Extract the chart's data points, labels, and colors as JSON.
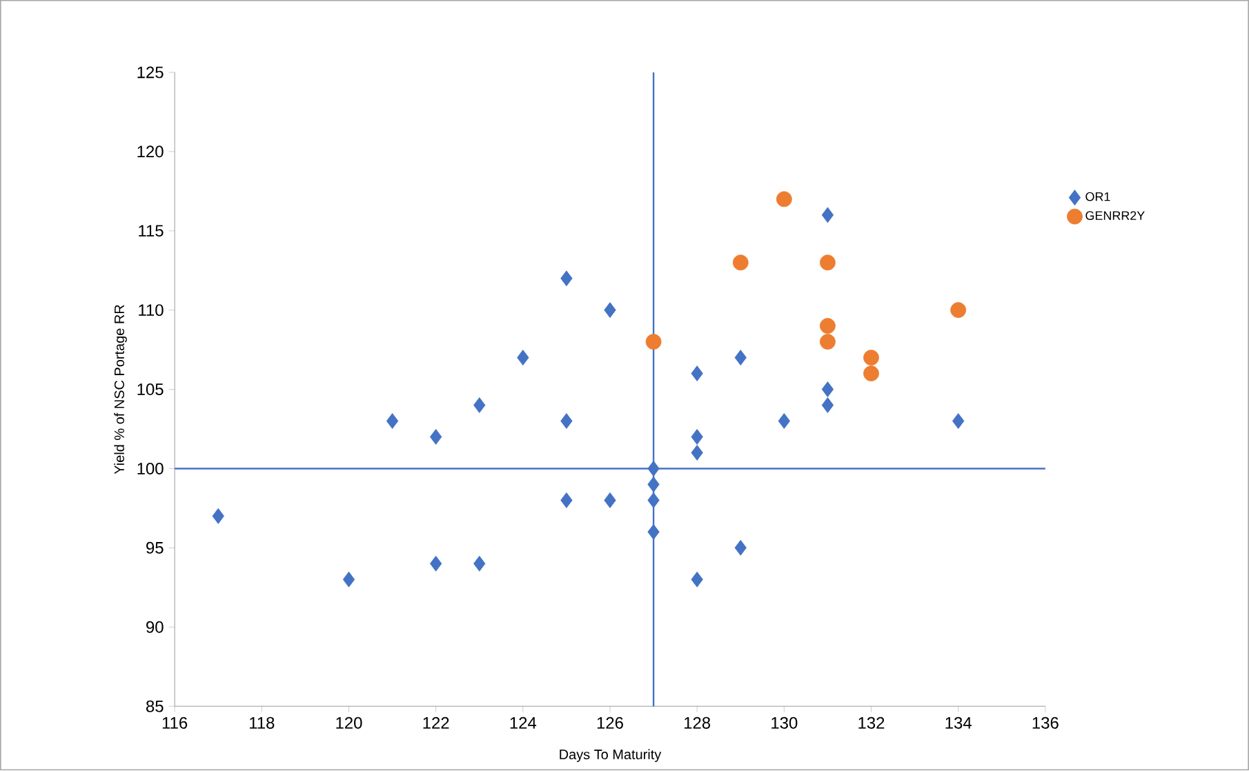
{
  "chart_data": {
    "type": "scatter",
    "xlabel": "Days To Maturity",
    "ylabel": "Yield % of NSC Portage RR",
    "xlim": [
      116,
      136
    ],
    "xticks": [
      116,
      118,
      120,
      122,
      124,
      126,
      128,
      130,
      132,
      134,
      136
    ],
    "ylim": [
      85,
      125
    ],
    "yticks": [
      85,
      90,
      95,
      100,
      105,
      110,
      115,
      120,
      125
    ],
    "grid": false,
    "legend": "right",
    "ref_lines": [
      {
        "axis": "x",
        "value": 127,
        "color": "#4472c4"
      },
      {
        "axis": "y",
        "value": 100,
        "color": "#4472c4"
      }
    ],
    "series": [
      {
        "name": "OR1",
        "color": "#4472c4",
        "marker": "diamond",
        "x": [
          117,
          120,
          121,
          122,
          122,
          123,
          123,
          124,
          125,
          125,
          125,
          126,
          126,
          127,
          127,
          127,
          127,
          128,
          128,
          128,
          128,
          129,
          129,
          130,
          131,
          131,
          131,
          134
        ],
        "values": [
          97,
          93,
          103,
          102,
          94,
          104,
          94,
          107,
          112,
          103,
          98,
          110,
          98,
          100,
          99,
          98,
          96,
          106,
          102,
          101,
          93,
          107,
          95,
          103,
          116,
          105,
          104,
          103
        ]
      },
      {
        "name": "GENRR2Y",
        "color": "#ed7d31",
        "marker": "circle",
        "x": [
          127,
          129,
          130,
          131,
          131,
          131,
          132,
          132,
          134
        ],
        "values": [
          108,
          113,
          117,
          113,
          109,
          108,
          107,
          106,
          110
        ]
      }
    ]
  }
}
